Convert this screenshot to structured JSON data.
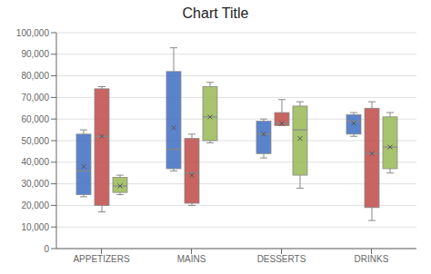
{
  "chart_data": {
    "type": "box",
    "title": "Chart Title",
    "categories": [
      "APPETIZERS",
      "MAINS",
      "DESSERTS",
      "DRINKS"
    ],
    "series": [
      {
        "color": "#4472C4",
        "values": [
          {
            "whislo": 24000,
            "q1": 25000,
            "med": 36000,
            "q3": 53000,
            "whishi": 55000,
            "mean": 38000
          },
          {
            "whislo": 36000,
            "q1": 37000,
            "med": 46000,
            "q3": 82000,
            "whishi": 93000,
            "mean": 56000
          },
          {
            "whislo": 42000,
            "q1": 44000,
            "med": 53000,
            "q3": 59000,
            "whishi": 60000,
            "mean": 53000
          },
          {
            "whislo": 52000,
            "q1": 53000,
            "med": 59000,
            "q3": 62000,
            "whishi": 63000,
            "mean": 58000
          }
        ]
      },
      {
        "color": "#C0504D",
        "values": [
          {
            "whislo": 17000,
            "q1": 20000,
            "med": 52000,
            "q3": 74000,
            "whishi": 75000,
            "mean": 52000
          },
          {
            "whislo": 20000,
            "q1": 21000,
            "med": 35000,
            "q3": 51000,
            "whishi": 53000,
            "mean": 34000
          },
          {
            "whislo": 57000,
            "q1": 57000,
            "med": 58000,
            "q3": 63000,
            "whishi": 69000,
            "mean": 58000
          },
          {
            "whislo": 13000,
            "q1": 19000,
            "med": 44000,
            "q3": 65000,
            "whishi": 68000,
            "mean": 44000
          }
        ]
      },
      {
        "color": "#9BBB59",
        "values": [
          {
            "whislo": 25000,
            "q1": 26000,
            "med": 29000,
            "q3": 33000,
            "whishi": 34000,
            "mean": 29000
          },
          {
            "whislo": 49000,
            "q1": 50000,
            "med": 61000,
            "q3": 75000,
            "whishi": 77000,
            "mean": 61000
          },
          {
            "whislo": 28000,
            "q1": 34000,
            "med": 55000,
            "q3": 66000,
            "whishi": 68000,
            "mean": 51000
          },
          {
            "whislo": 35000,
            "q1": 37000,
            "med": 47000,
            "q3": 61000,
            "whishi": 63000,
            "mean": 47000
          }
        ]
      }
    ],
    "ylim": [
      0,
      100000
    ],
    "yticks": [
      0,
      {
        "value": 10000,
        "label": "10,000"
      },
      {
        "value": 20000,
        "label": "20,000"
      },
      {
        "value": 30000,
        "label": "30,000"
      },
      {
        "value": 40000,
        "label": "40,000"
      },
      {
        "value": 50000,
        "label": "50,000"
      },
      {
        "value": 60000,
        "label": "60,000"
      },
      {
        "value": 70000,
        "label": "70,000"
      },
      {
        "value": 80000,
        "label": "80,000"
      },
      {
        "value": 90000,
        "label": "90,000"
      },
      {
        "value": 100000,
        "label": "100,000"
      }
    ],
    "grid": true
  }
}
